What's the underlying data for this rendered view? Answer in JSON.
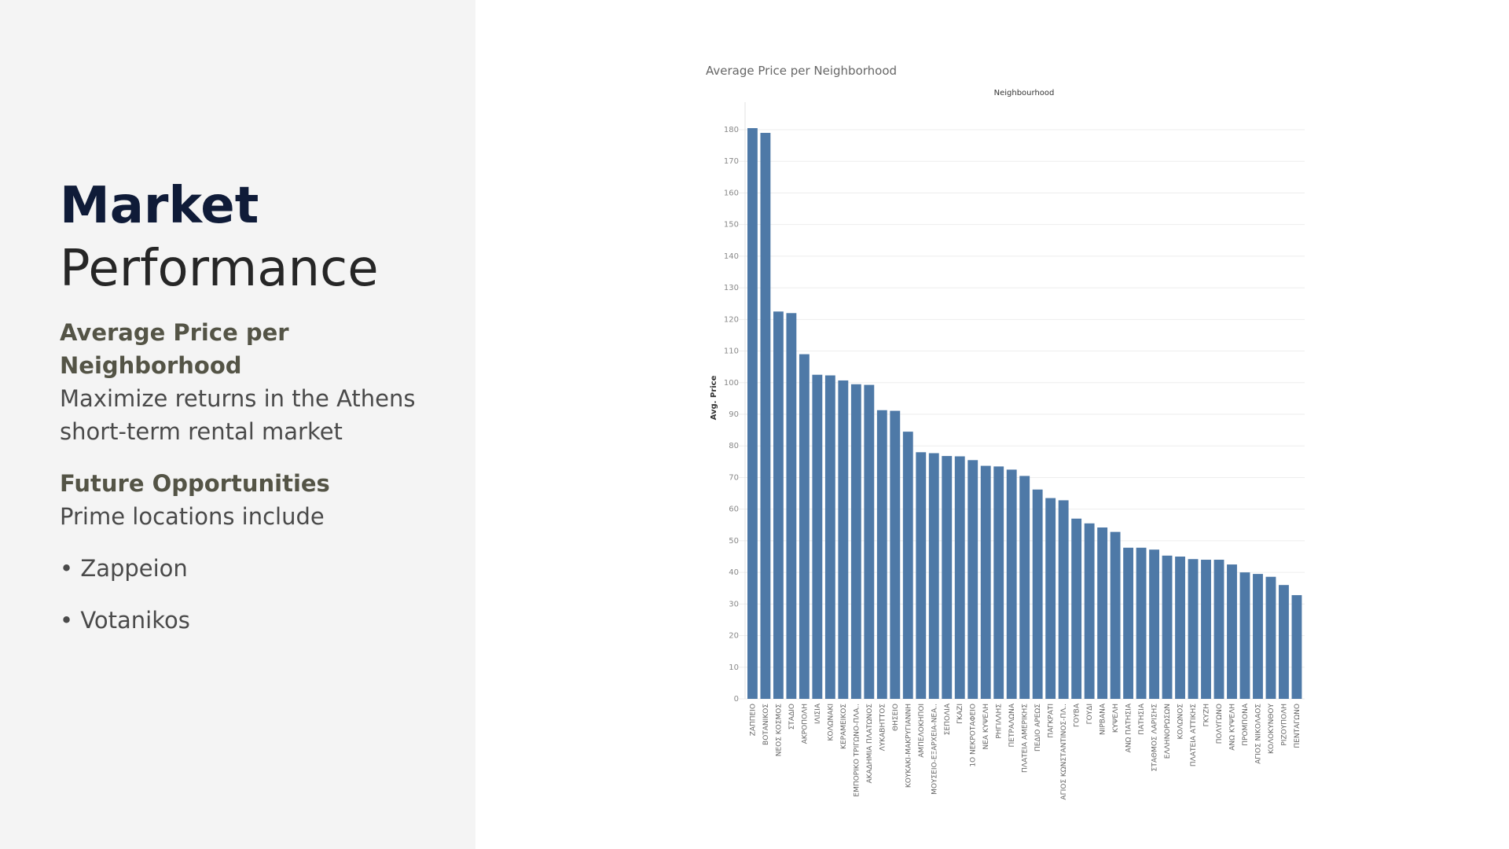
{
  "slide": {
    "title_line1": "Market",
    "title_line2": "Performance",
    "section1_heading": "Average Price per Neighborhood",
    "section1_body": "Maximize returns in the Athens short-term rental market",
    "section2_heading": "Future Opportunities",
    "section2_body": "Prime locations include",
    "bullets": [
      "• Zappeion",
      "• Votanikos"
    ]
  },
  "colors": {
    "bar": "#4e79a7",
    "left_panel": "#f4f4f4",
    "title": "#0f1b38",
    "heading": "#545446"
  },
  "chart_data": {
    "type": "bar",
    "title": "Average Price per Neighborhood",
    "top_header": "Neighbourhood",
    "ylabel": "Avg. Price",
    "ylim": [
      0,
      180
    ],
    "yticks": [
      0,
      10,
      20,
      30,
      40,
      50,
      60,
      70,
      80,
      90,
      100,
      110,
      120,
      130,
      140,
      150,
      160,
      170,
      180
    ],
    "grid": true,
    "categories": [
      "ΖΑΠΠΕΙΟ",
      "ΒΟΤΑΝΙΚΟΣ",
      "ΝΕΟΣ ΚΟΣΜΟΣ",
      "ΣΤΑΔΙΟ",
      "ΑΚΡΟΠΟΛΗ",
      "ΙΛΙΣΙΑ",
      "ΚΟΛΩΝΑΚΙ",
      "ΚΕΡΑΜΕΙΚΟΣ",
      "ΕΜΠΟΡΙΚΟ ΤΡΙΓΩΝΟ-ΠΛΑ..",
      "ΑΚΑΔΗΜΙΑ ΠΛΑΤΩΝΟΣ",
      "ΛΥΚΑΒΗΤΤΟΣ",
      "ΘΗΣΕΙΟ",
      "ΚΟΥΚΑΚΙ-ΜΑΚΡΥΓΙΑΝΝΗ",
      "ΑΜΠΕΛΟΚΗΠΟΙ",
      "ΜΟΥΣΕΙΟ-ΕΞΑΡΧΕΙΑ-ΝΕΑ..",
      "ΣΕΠΟΛΙΑ",
      "ΓΚΑΖΙ",
      "1Ο ΝΕΚΡΟΤΑΦΕΙΟ",
      "ΝΕΑ ΚΥΨΕΛΗ",
      "ΡΗΓΙΛΛΗΣ",
      "ΠΕΤΡΑΛΩΝΑ",
      "ΠΛΑΤΕΙΑ ΑΜΕΡΙΚΗΣ",
      "ΠΕΔΙΟ ΑΡΕΩΣ",
      "ΠΑΓΚΡΑΤΙ",
      "ΑΓΙΟΣ ΚΩΝΣΤΑΝΤΙΝΟΣ-ΠΛ..",
      "ΓΟΥΒΑ",
      "ΓΟΥΔΙ",
      "ΝΙΡΒΑΝΑ",
      "ΚΥΨΕΛΗ",
      "ΑΝΩ ΠΑΤΗΣΙΑ",
      "ΠΑΤΗΣΙΑ",
      "ΣΤΑΘΜΟΣ ΛΑΡΙΣΗΣ",
      "ΕΛΛΗΝΟΡΩΣΩΝ",
      "ΚΟΛΩΝΟΣ",
      "ΠΛΑΤΕΙΑ ΑΤΤΙΚΗΣ",
      "ΓΚΥΖΗ",
      "ΠΟΛΥΓΩΝΟ",
      "ΑΝΩ ΚΥΨΕΛΗ",
      "ΠΡΟΜΠΟΝΑ",
      "ΑΓΙΟΣ ΝΙΚΟΛΑΟΣ",
      "ΚΟΛΟΚΥΝΘΟΥ",
      "ΡΙΖΟΥΠΟΛΗ",
      "ΠΕΝΤΑΓΩΝΟ"
    ],
    "values": [
      180.5,
      179,
      122.5,
      122,
      109,
      102.5,
      102.3,
      100.7,
      99.5,
      99.3,
      91.3,
      91.1,
      84.5,
      78,
      77.7,
      76.8,
      76.7,
      75.5,
      73.7,
      73.5,
      72.5,
      70.5,
      66.2,
      63.5,
      62.8,
      57,
      55.5,
      54.2,
      52.8,
      47.8,
      47.8,
      47.2,
      45.3,
      45,
      44.2,
      44,
      44,
      42.5,
      40,
      39.5,
      38.6,
      36,
      32.8
    ]
  }
}
